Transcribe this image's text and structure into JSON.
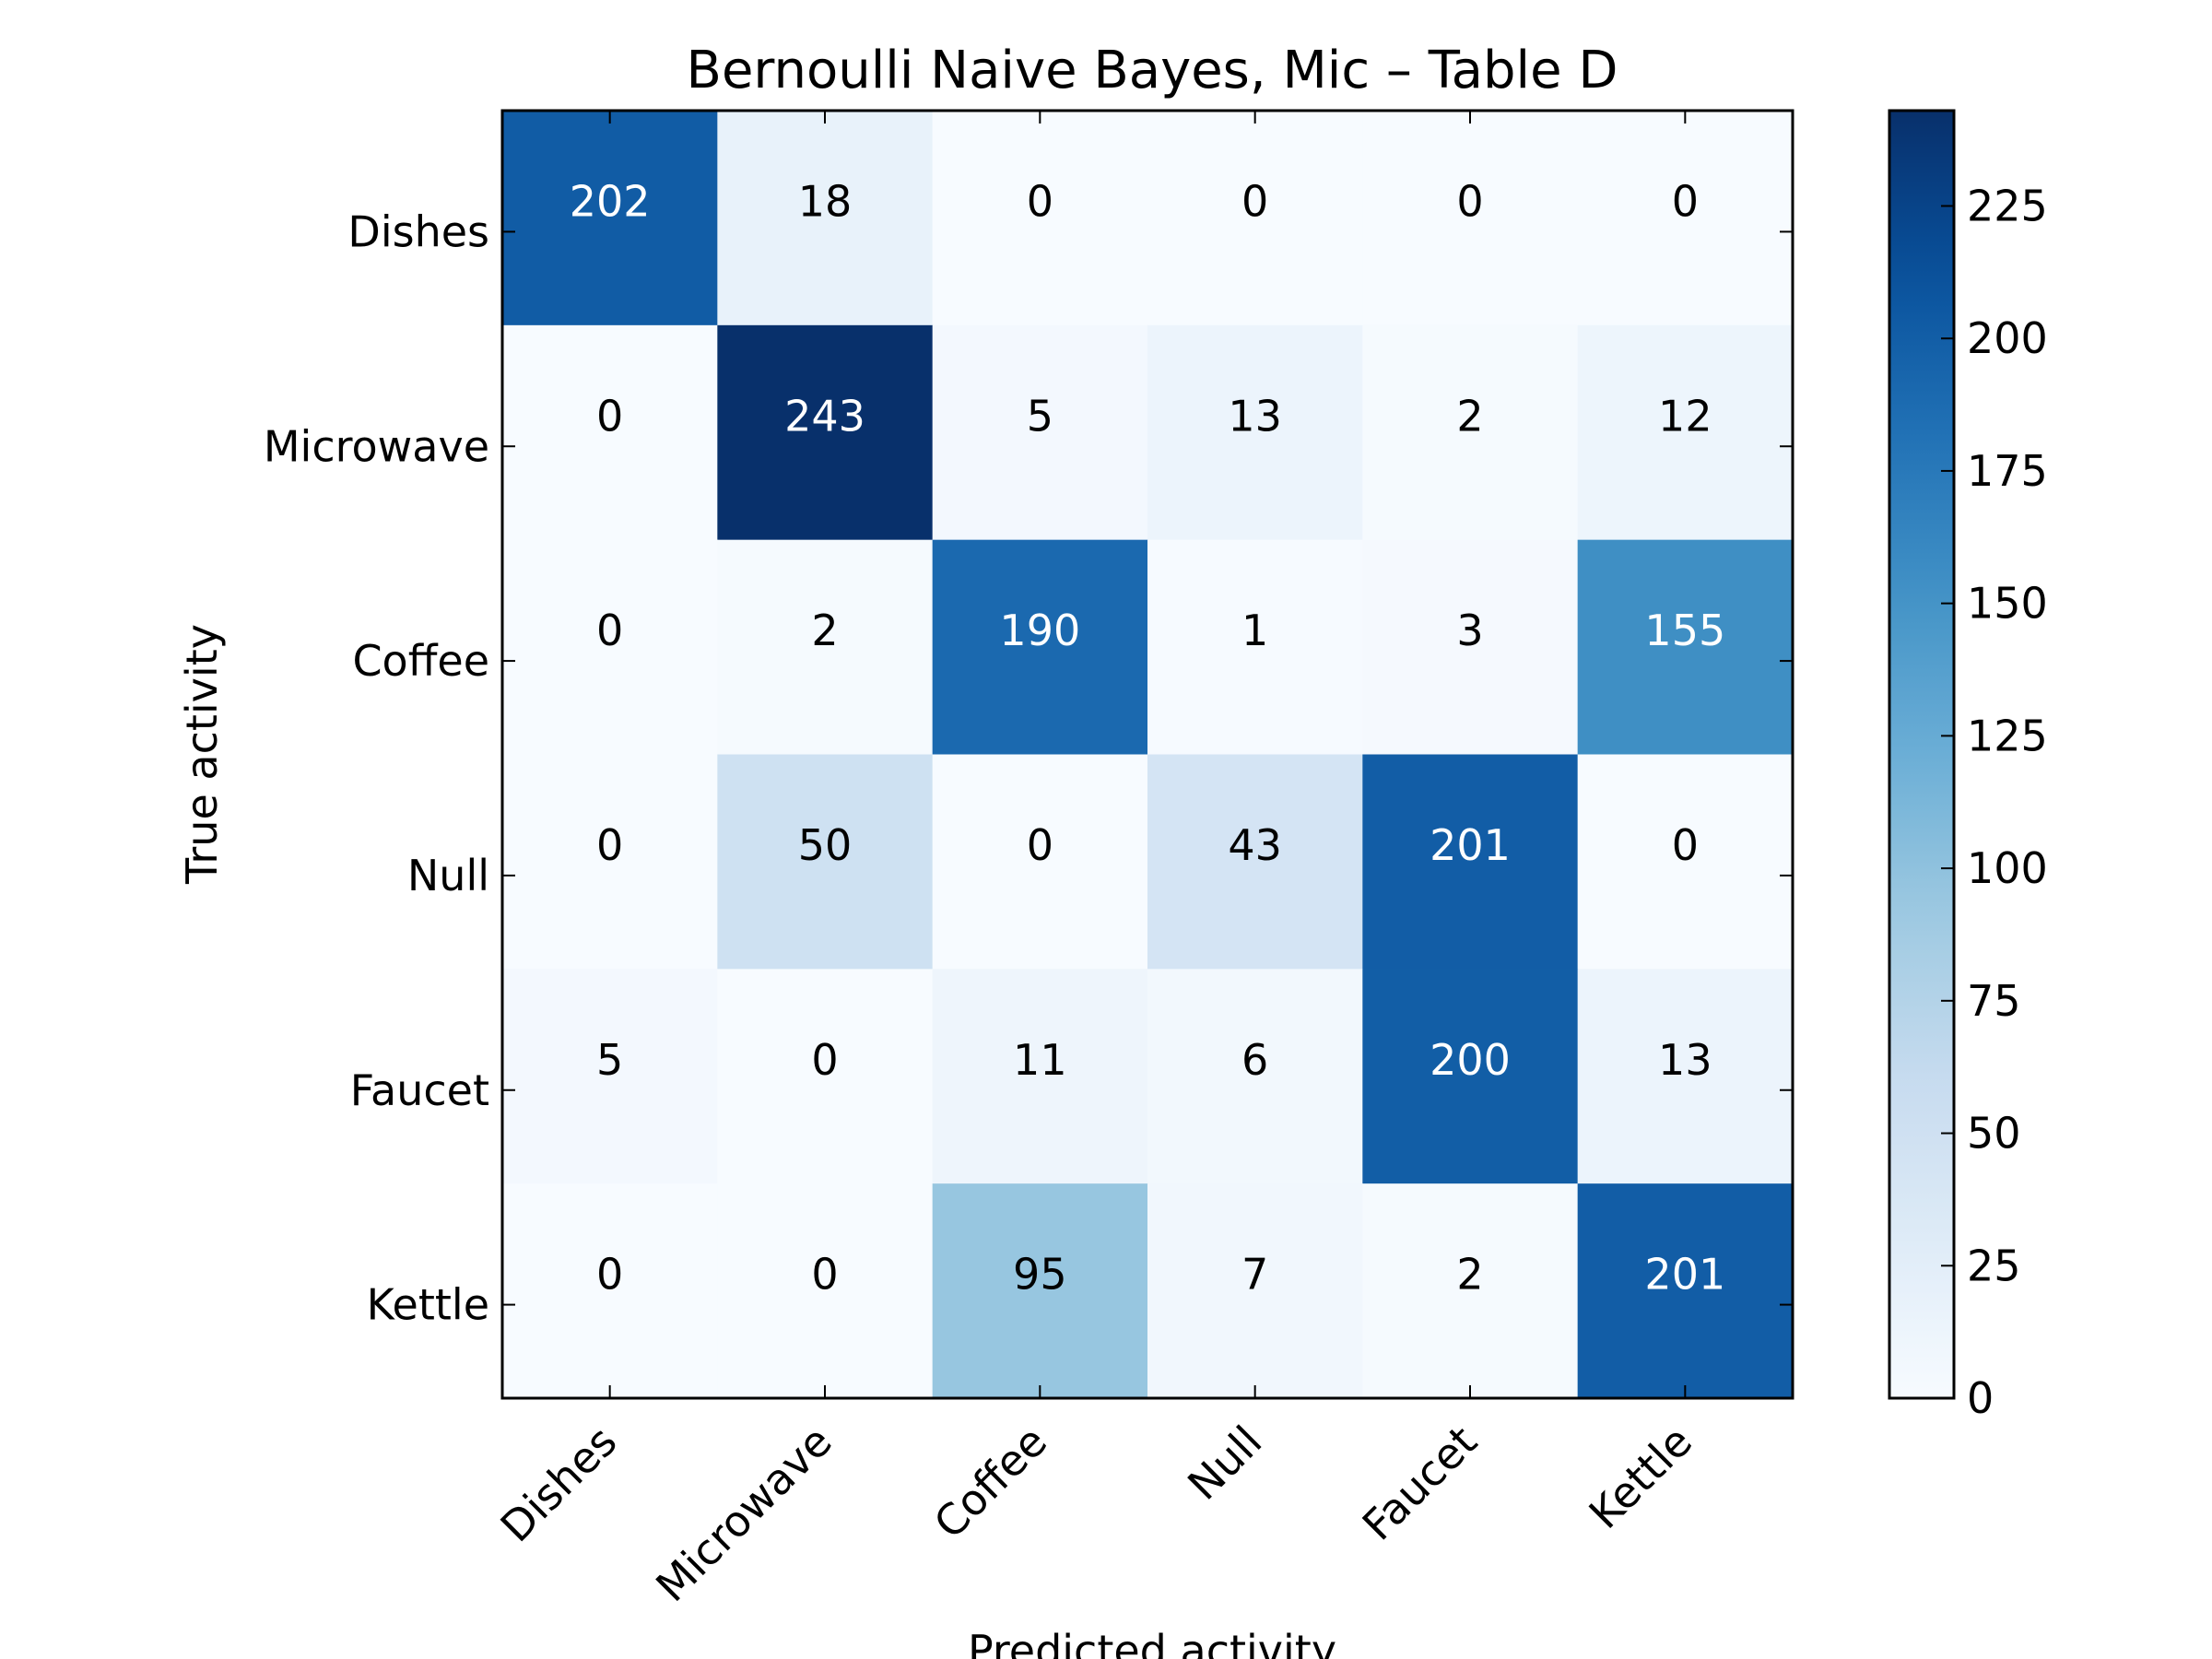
{
  "chart_data": {
    "type": "heatmap",
    "title": "Bernoulli Naive Bayes, Mic – Table D",
    "xlabel": "Predicted activity",
    "ylabel": "True activity",
    "x_categories": [
      "Dishes",
      "Microwave",
      "Coffee",
      "Null",
      "Faucet",
      "Kettle"
    ],
    "y_categories": [
      "Dishes",
      "Microwave",
      "Coffee",
      "Null",
      "Faucet",
      "Kettle"
    ],
    "values": [
      [
        202,
        18,
        0,
        0,
        0,
        0
      ],
      [
        0,
        243,
        5,
        13,
        2,
        12
      ],
      [
        0,
        2,
        190,
        1,
        3,
        155
      ],
      [
        0,
        50,
        0,
        43,
        201,
        0
      ],
      [
        5,
        0,
        11,
        6,
        200,
        13
      ],
      [
        0,
        0,
        95,
        7,
        2,
        201
      ]
    ],
    "colormap": "Blues",
    "colorbar": {
      "range": [
        0,
        243
      ],
      "ticks": [
        0,
        25,
        50,
        75,
        100,
        125,
        150,
        175,
        200,
        225
      ]
    },
    "text_colors": {
      "dark": "#000000",
      "light": "#ffffff"
    }
  }
}
